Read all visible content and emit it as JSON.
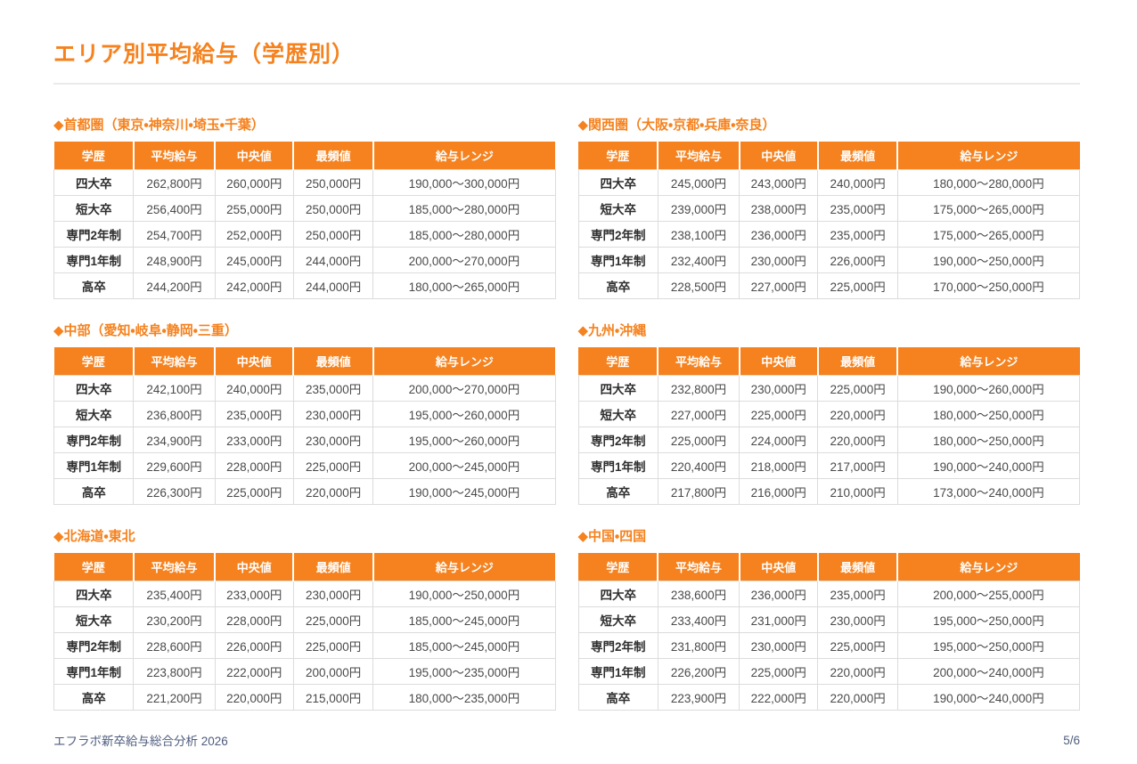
{
  "page": {
    "title": "エリア別平均給与（学歴別）"
  },
  "colors": {
    "accent_orange": "#F5821E",
    "header_text": "#FFFFFF",
    "body_text": "#4A4A4A",
    "row_label_text": "#2E2E2E",
    "cell_border": "#DCDCDC",
    "divider": "#E7EAEE",
    "footer_text": "#4E5C7E"
  },
  "columns": [
    "学歴",
    "平均給与",
    "中央値",
    "最頻値",
    "給与レンジ"
  ],
  "sections": [
    {
      "title": "◆首都圏（東京・神奈川・埼玉・千葉）",
      "rows": [
        [
          "四大卒",
          "262,800円",
          "260,000円",
          "250,000円",
          "190,000〜300,000円"
        ],
        [
          "短大卒",
          "256,400円",
          "255,000円",
          "250,000円",
          "185,000〜280,000円"
        ],
        [
          "専門2年制",
          "254,700円",
          "252,000円",
          "250,000円",
          "185,000〜280,000円"
        ],
        [
          "専門1年制",
          "248,900円",
          "245,000円",
          "244,000円",
          "200,000〜270,000円"
        ],
        [
          "高卒",
          "244,200円",
          "242,000円",
          "244,000円",
          "180,000〜265,000円"
        ]
      ]
    },
    {
      "title": "◆関西圏（大阪・京都・兵庫・奈良）",
      "rows": [
        [
          "四大卒",
          "245,000円",
          "243,000円",
          "240,000円",
          "180,000〜280,000円"
        ],
        [
          "短大卒",
          "239,000円",
          "238,000円",
          "235,000円",
          "175,000〜265,000円"
        ],
        [
          "専門2年制",
          "238,100円",
          "236,000円",
          "235,000円",
          "175,000〜265,000円"
        ],
        [
          "専門1年制",
          "232,400円",
          "230,000円",
          "226,000円",
          "190,000〜250,000円"
        ],
        [
          "高卒",
          "228,500円",
          "227,000円",
          "225,000円",
          "170,000〜250,000円"
        ]
      ]
    },
    {
      "title": "◆中部（愛知・岐阜・静岡・三重）",
      "rows": [
        [
          "四大卒",
          "242,100円",
          "240,000円",
          "235,000円",
          "200,000〜270,000円"
        ],
        [
          "短大卒",
          "236,800円",
          "235,000円",
          "230,000円",
          "195,000〜260,000円"
        ],
        [
          "専門2年制",
          "234,900円",
          "233,000円",
          "230,000円",
          "195,000〜260,000円"
        ],
        [
          "専門1年制",
          "229,600円",
          "228,000円",
          "225,000円",
          "200,000〜245,000円"
        ],
        [
          "高卒",
          "226,300円",
          "225,000円",
          "220,000円",
          "190,000〜245,000円"
        ]
      ]
    },
    {
      "title": "◆九州・沖縄",
      "rows": [
        [
          "四大卒",
          "232,800円",
          "230,000円",
          "225,000円",
          "190,000〜260,000円"
        ],
        [
          "短大卒",
          "227,000円",
          "225,000円",
          "220,000円",
          "180,000〜250,000円"
        ],
        [
          "専門2年制",
          "225,000円",
          "224,000円",
          "220,000円",
          "180,000〜250,000円"
        ],
        [
          "専門1年制",
          "220,400円",
          "218,000円",
          "217,000円",
          "190,000〜240,000円"
        ],
        [
          "高卒",
          "217,800円",
          "216,000円",
          "210,000円",
          "173,000〜240,000円"
        ]
      ]
    },
    {
      "title": "◆北海道・東北",
      "rows": [
        [
          "四大卒",
          "235,400円",
          "233,000円",
          "230,000円",
          "190,000〜250,000円"
        ],
        [
          "短大卒",
          "230,200円",
          "228,000円",
          "225,000円",
          "185,000〜245,000円"
        ],
        [
          "専門2年制",
          "228,600円",
          "226,000円",
          "225,000円",
          "185,000〜245,000円"
        ],
        [
          "専門1年制",
          "223,800円",
          "222,000円",
          "200,000円",
          "195,000〜235,000円"
        ],
        [
          "高卒",
          "221,200円",
          "220,000円",
          "215,000円",
          "180,000〜235,000円"
        ]
      ]
    },
    {
      "title": "◆中国・四国",
      "rows": [
        [
          "四大卒",
          "238,600円",
          "236,000円",
          "235,000円",
          "200,000〜255,000円"
        ],
        [
          "短大卒",
          "233,400円",
          "231,000円",
          "230,000円",
          "195,000〜250,000円"
        ],
        [
          "専門2年制",
          "231,800円",
          "230,000円",
          "225,000円",
          "195,000〜250,000円"
        ],
        [
          "専門1年制",
          "226,200円",
          "225,000円",
          "220,000円",
          "200,000〜240,000円"
        ],
        [
          "高卒",
          "223,900円",
          "222,000円",
          "220,000円",
          "190,000〜240,000円"
        ]
      ]
    }
  ],
  "footer": {
    "source_label": "エフラボ新卒給与総合分析 2026",
    "page_number": "5/6"
  }
}
